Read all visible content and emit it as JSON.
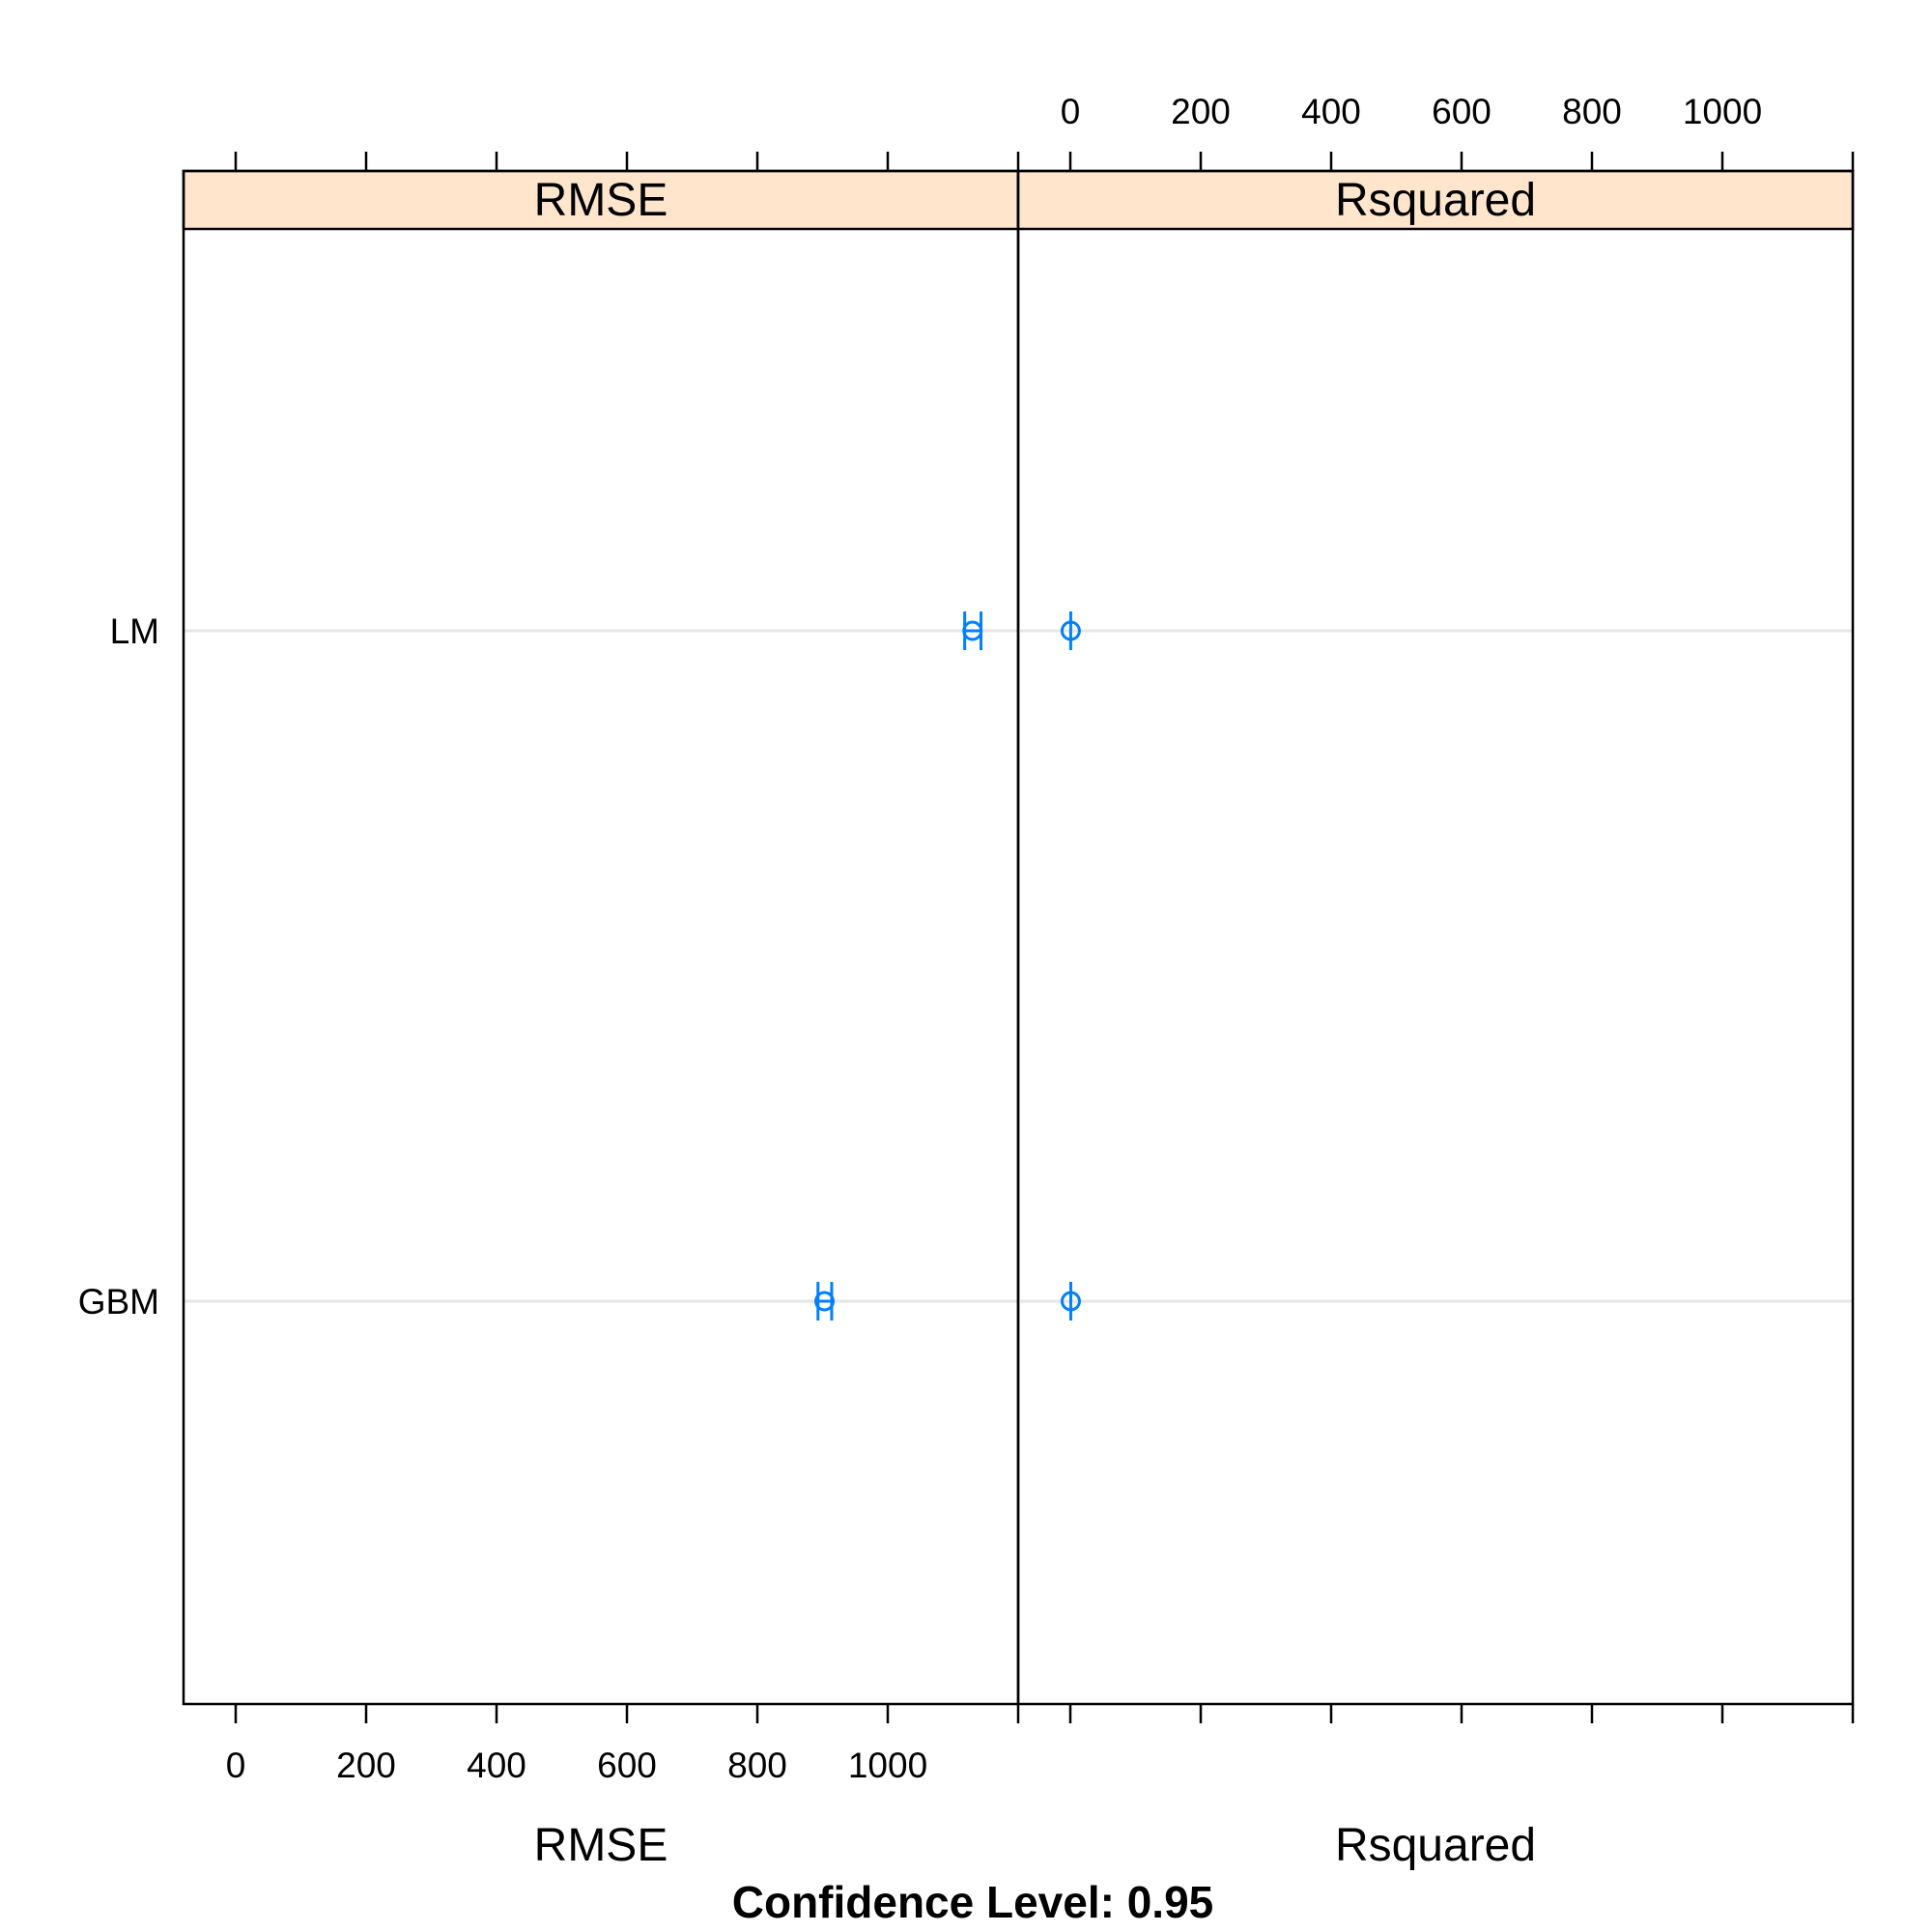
{
  "chart_data": {
    "type": "dotplot",
    "panels": [
      {
        "name": "RMSE",
        "xlabel": "RMSE",
        "xlim": [
          -80,
          1200
        ],
        "ticks": [
          0,
          200,
          400,
          600,
          800,
          1000
        ],
        "tick_labels": [
          "0",
          "200",
          "400",
          "600",
          "800",
          "1000"
        ],
        "tick_label_side": "bottom",
        "points": [
          {
            "model": "LM",
            "value": 1130,
            "lower": 1118,
            "upper": 1143
          },
          {
            "model": "GBM",
            "value": 903,
            "lower": 893,
            "upper": 914
          }
        ]
      },
      {
        "name": "Rsquared",
        "xlabel": "Rsquared",
        "xlim": [
          -80,
          1200
        ],
        "ticks": [
          0,
          200,
          400,
          600,
          800,
          1000
        ],
        "tick_labels": [
          "0",
          "200",
          "400",
          "600",
          "800",
          "1000"
        ],
        "tick_label_side": "top",
        "points": [
          {
            "model": "LM",
            "value": 0.6,
            "lower": 0.5,
            "upper": 0.7
          },
          {
            "model": "GBM",
            "value": 0.7,
            "lower": 0.6,
            "upper": 0.8
          }
        ]
      }
    ],
    "categories": [
      "LM",
      "GBM"
    ],
    "caption": "Confidence Level: 0.95",
    "grid": "horizontal",
    "colors": {
      "point": "#0080ff",
      "strip": "#ffe5cc",
      "grid": "#e6e6e6"
    }
  }
}
